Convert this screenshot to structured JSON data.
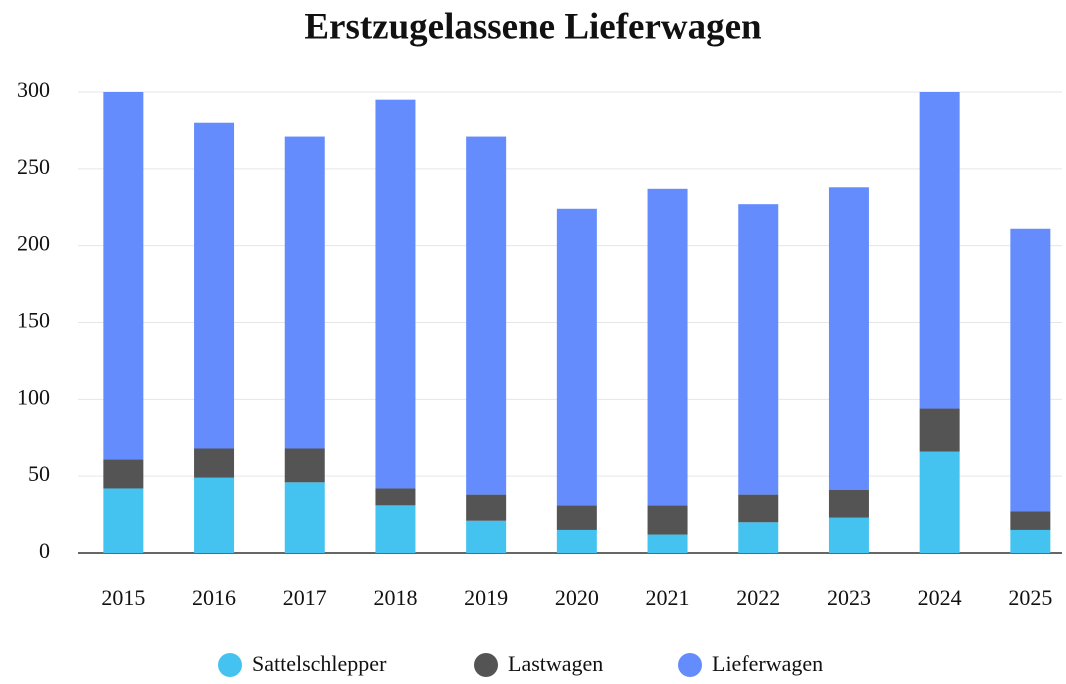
{
  "chart_data": {
    "type": "stacked_bar",
    "title": "Erstzugelassene Lieferwagen",
    "categories": [
      "2015",
      "2016",
      "2017",
      "2018",
      "2019",
      "2020",
      "2021",
      "2022",
      "2023",
      "2024",
      "2025"
    ],
    "series": [
      {
        "name": "Sattelschlepper",
        "color": "#45c3f0",
        "values": [
          42,
          49,
          46,
          31,
          21,
          15,
          12,
          20,
          23,
          66,
          15
        ]
      },
      {
        "name": "Lastwagen",
        "color": "#545454",
        "values": [
          19,
          19,
          22,
          11,
          17,
          16,
          19,
          18,
          18,
          28,
          12
        ]
      },
      {
        "name": "Lieferwagen",
        "color": "#648cfc",
        "values": [
          239,
          212,
          203,
          253,
          233,
          193,
          206,
          189,
          197,
          206,
          184
        ]
      }
    ],
    "ylim": [
      0,
      300
    ],
    "yticks": [
      0,
      50,
      100,
      150,
      200,
      250,
      300
    ],
    "grid": true,
    "legend": "bottom"
  }
}
